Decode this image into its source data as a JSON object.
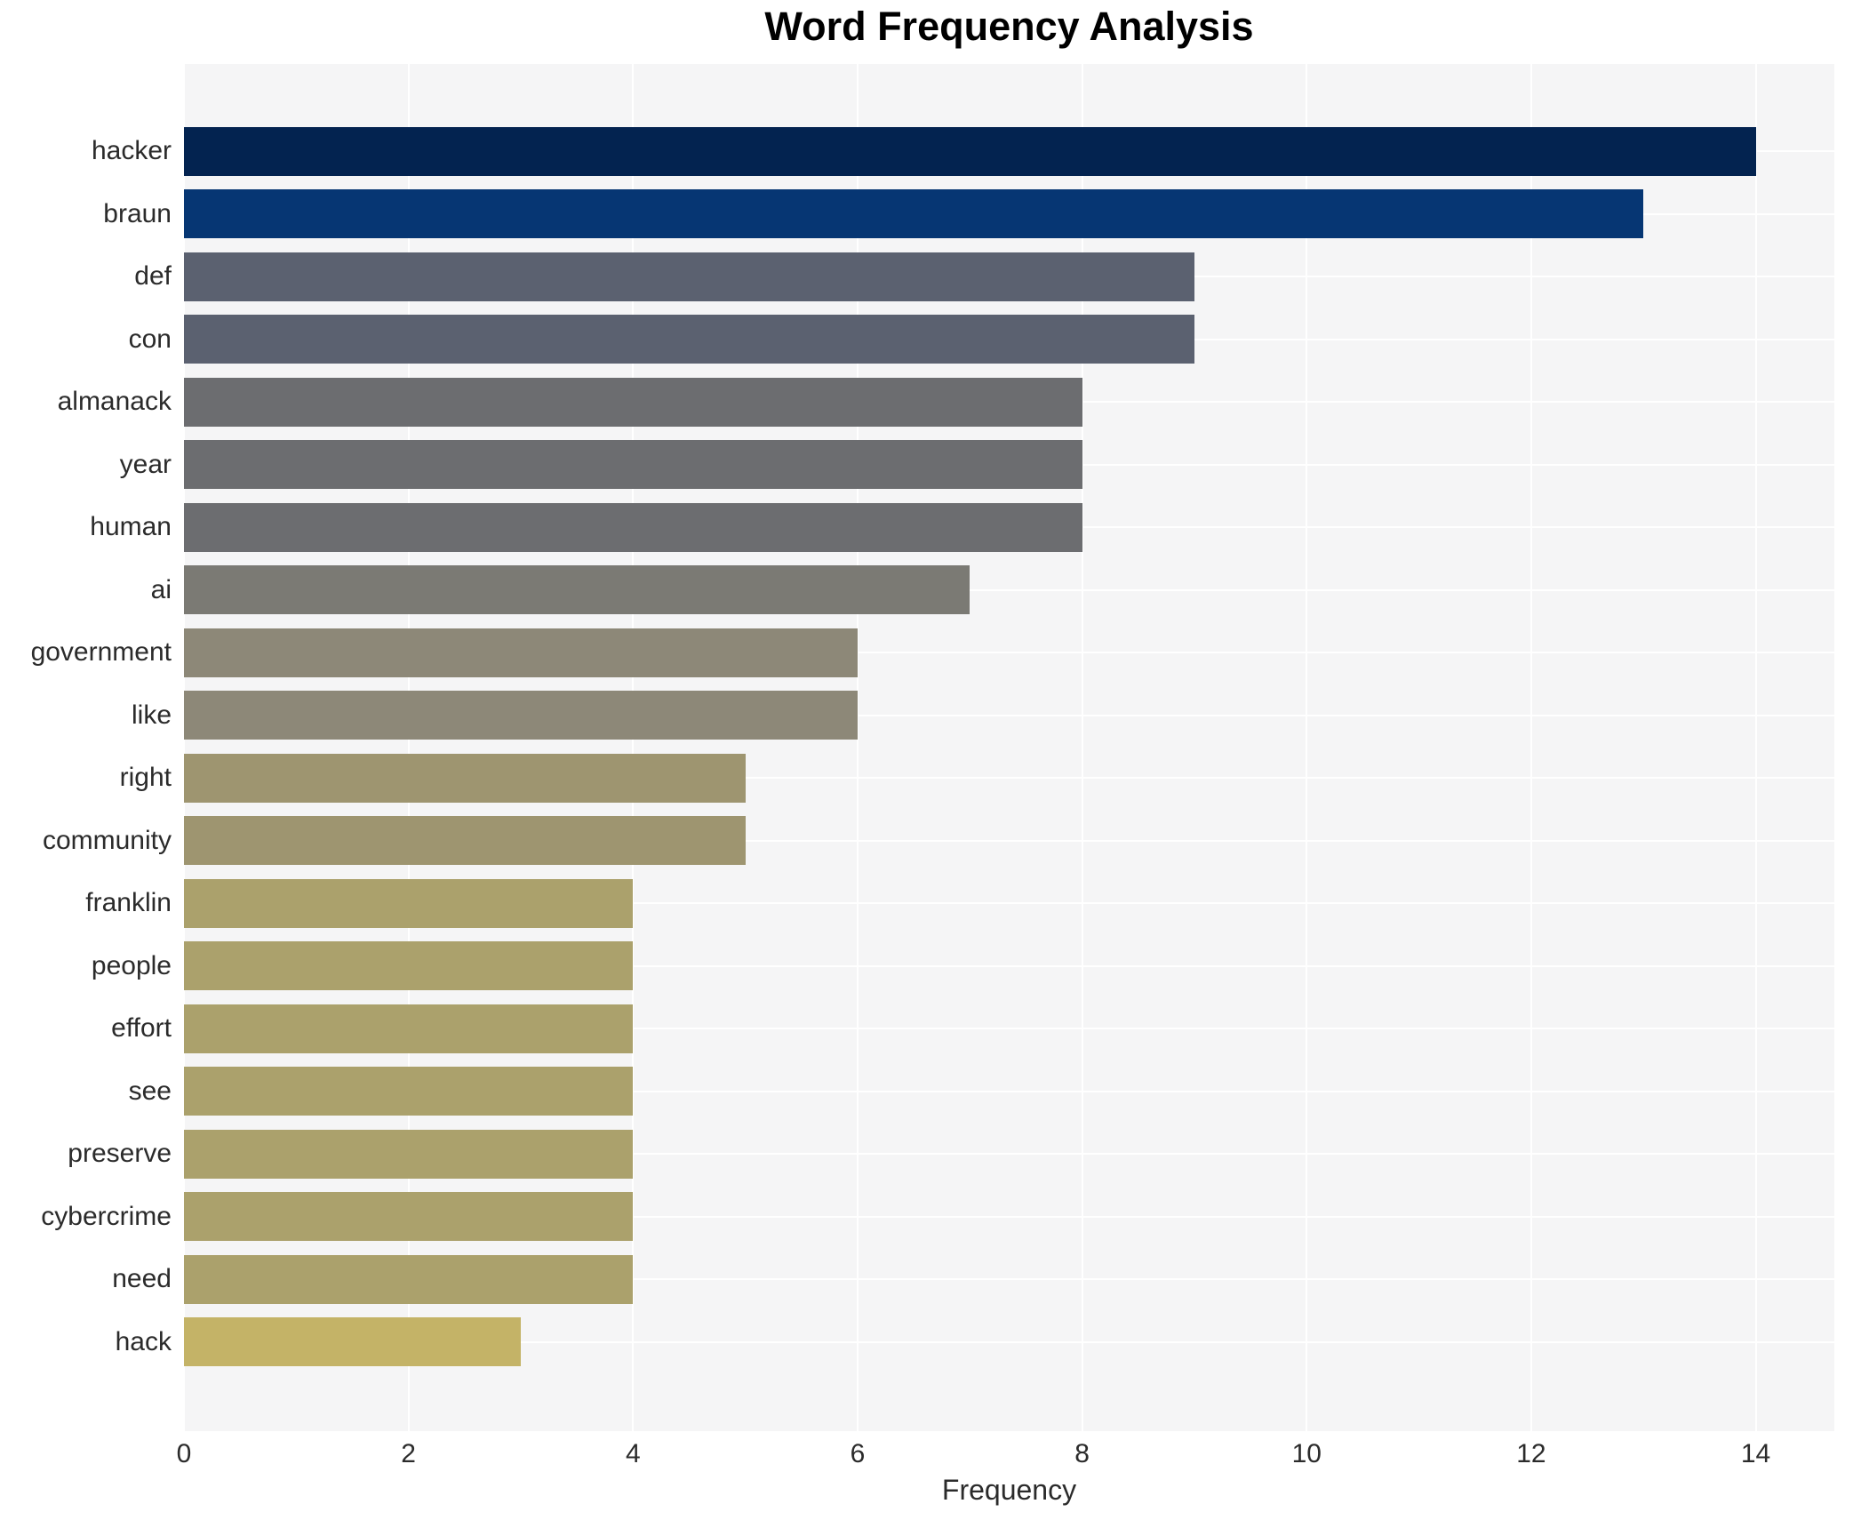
{
  "page": {
    "background": "#ffffff"
  },
  "chart_data": {
    "type": "bar",
    "orientation": "horizontal",
    "title": "Word Frequency Analysis",
    "xlabel": "Frequency",
    "ylabel": "",
    "categories": [
      "hacker",
      "braun",
      "def",
      "con",
      "almanack",
      "year",
      "human",
      "ai",
      "government",
      "like",
      "right",
      "community",
      "franklin",
      "people",
      "effort",
      "see",
      "preserve",
      "cybercrime",
      "need",
      "hack"
    ],
    "values": [
      14,
      13,
      9,
      9,
      8,
      8,
      8,
      7,
      6,
      6,
      5,
      5,
      4,
      4,
      4,
      4,
      4,
      4,
      4,
      3
    ],
    "bar_colors": [
      "#032350",
      "#063673",
      "#5b6170",
      "#5b6170",
      "#6c6d70",
      "#6c6d70",
      "#6c6d70",
      "#7b7a74",
      "#8d8878",
      "#8d8878",
      "#9e9570",
      "#9e9570",
      "#aba16c",
      "#aba16c",
      "#aba16c",
      "#aba16c",
      "#aba16c",
      "#aba16c",
      "#aba16c",
      "#c4b367"
    ],
    "xticks": [
      0,
      2,
      4,
      6,
      8,
      10,
      12,
      14
    ],
    "xlim": [
      0,
      14.7
    ],
    "grid": true,
    "legend": "none",
    "colors": {
      "plot_background": "#f5f5f6",
      "gridline": "#ffffff",
      "axis_text": "#2b2b2b",
      "title_text": "#000000"
    }
  }
}
